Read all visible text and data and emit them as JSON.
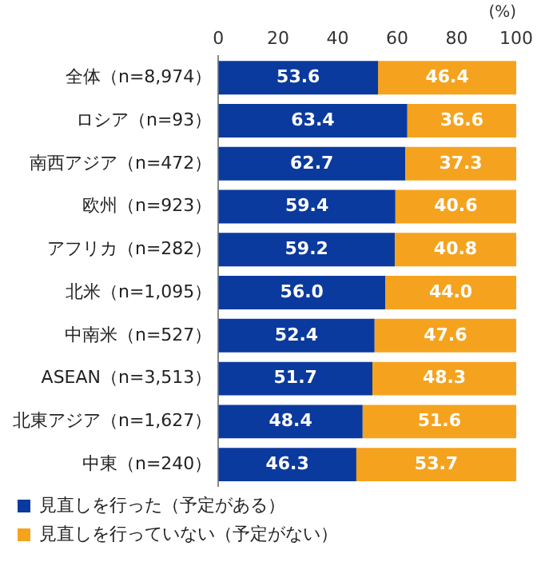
{
  "chart_data": {
    "type": "bar",
    "orientation": "horizontal",
    "stacked": true,
    "xlabel": "(%)",
    "categories": [
      "全体（n=8,974）",
      "ロシア（n=93）",
      "南西アジア（n=472）",
      "欧州（n=923）",
      "アフリカ（n=282）",
      "北米（n=1,095）",
      "中南米（n=527）",
      "ASEAN（n=3,513）",
      "北東アジア（n=1,627）",
      "中東（n=240）"
    ],
    "series": [
      {
        "name": "見直しを行った（予定がある）",
        "color": "#0b3a9e",
        "values": [
          53.6,
          63.4,
          62.7,
          59.4,
          59.2,
          56.0,
          52.4,
          51.7,
          48.4,
          46.3
        ],
        "value_labels": [
          "53.6",
          "63.4",
          "62.7",
          "59.4",
          "59.2",
          "56.0",
          "52.4",
          "51.7",
          "48.4",
          "46.3"
        ]
      },
      {
        "name": "見直しを行っていない（予定がない）",
        "color": "#f5a31e",
        "values": [
          46.4,
          36.6,
          37.3,
          40.6,
          40.8,
          44.0,
          47.6,
          48.3,
          51.6,
          53.7
        ],
        "value_labels": [
          "46.4",
          "36.6",
          "37.3",
          "40.6",
          "40.8",
          "44.0",
          "47.6",
          "48.3",
          "51.6",
          "53.7"
        ]
      }
    ],
    "xlim": [
      0,
      100
    ],
    "xticks": [
      0,
      20,
      40,
      60,
      80,
      100
    ],
    "grid": false,
    "legend": "bottom left"
  }
}
